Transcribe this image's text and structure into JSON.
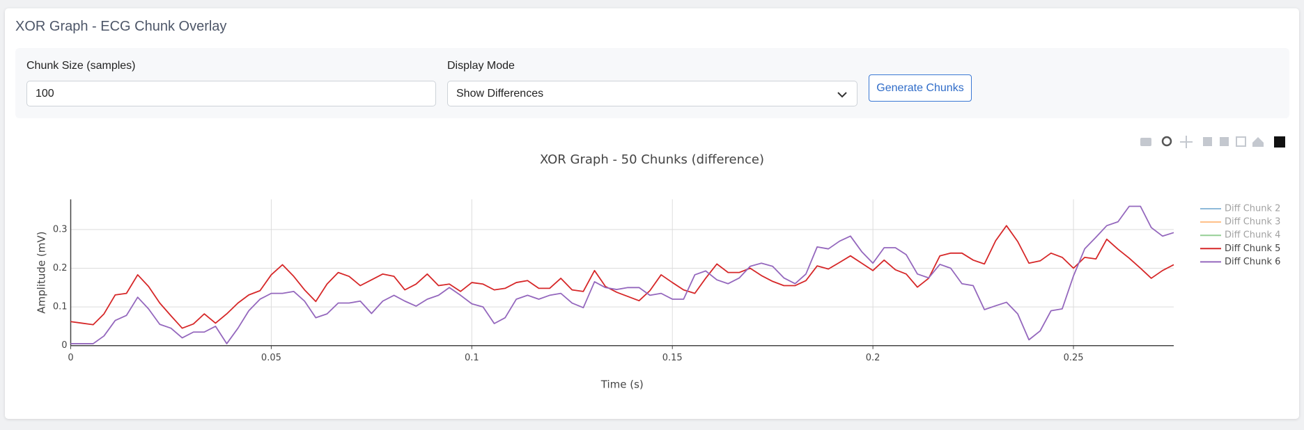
{
  "header": {
    "title": "XOR Graph - ECG Chunk Overlay"
  },
  "controls": {
    "chunk_size_label": "Chunk Size (samples)",
    "chunk_size_value": "100",
    "display_mode_label": "Display Mode",
    "display_mode_value": "Show Differences",
    "button": "Generate Chunks"
  },
  "chart_data": {
    "type": "line",
    "title": "XOR Graph - 50 Chunks (difference)",
    "x_label": "Time (s)",
    "y_label": "Amplitude (mV)",
    "x": [
      0,
      0.0028,
      0.0056,
      0.0083,
      0.0111,
      0.0139,
      0.0167,
      0.0194,
      0.0222,
      0.025,
      0.0278,
      0.0306,
      0.0333,
      0.0361,
      0.0389,
      0.0417,
      0.0444,
      0.0472,
      0.05,
      0.0528,
      0.0556,
      0.0583,
      0.0611,
      0.0639,
      0.0667,
      0.0694,
      0.0722,
      0.075,
      0.0778,
      0.0806,
      0.0833,
      0.0861,
      0.0889,
      0.0917,
      0.0944,
      0.0972,
      0.1,
      0.1028,
      0.1056,
      0.1083,
      0.1111,
      0.1139,
      0.1167,
      0.1194,
      0.1222,
      0.125,
      0.1278,
      0.1306,
      0.1333,
      0.1361,
      0.1389,
      0.1417,
      0.1444,
      0.1472,
      0.15,
      0.1528,
      0.1556,
      0.1583,
      0.1611,
      0.1639,
      0.1667,
      0.1694,
      0.1722,
      0.175,
      0.1778,
      0.1806,
      0.1833,
      0.1861,
      0.1889,
      0.1917,
      0.1944,
      0.1972,
      0.2,
      0.2028,
      0.2056,
      0.2083,
      0.2111,
      0.2139,
      0.2167,
      0.2194,
      0.2222,
      0.225,
      0.2278,
      0.2306,
      0.2333,
      0.2361,
      0.2389,
      0.2417,
      0.2444,
      0.2472,
      0.25,
      0.2528,
      0.2556,
      0.2583,
      0.2611,
      0.2639,
      0.2667,
      0.2694,
      0.2722,
      0.275
    ],
    "series": [
      {
        "name": "Diff Chunk 2",
        "color": "#1f77b4",
        "visible": false
      },
      {
        "name": "Diff Chunk 3",
        "color": "#ff7f0e",
        "visible": false
      },
      {
        "name": "Diff Chunk 4",
        "color": "#2ca02c",
        "visible": false
      },
      {
        "name": "Diff Chunk 5",
        "color": "#d62728",
        "visible": true,
        "values": [
          0.062,
          0.058,
          0.054,
          0.082,
          0.131,
          0.135,
          0.183,
          0.153,
          0.11,
          0.077,
          0.045,
          0.056,
          0.082,
          0.058,
          0.082,
          0.11,
          0.131,
          0.142,
          0.183,
          0.209,
          0.179,
          0.144,
          0.114,
          0.159,
          0.189,
          0.179,
          0.155,
          0.17,
          0.185,
          0.179,
          0.144,
          0.159,
          0.185,
          0.155,
          0.159,
          0.14,
          0.163,
          0.159,
          0.144,
          0.148,
          0.163,
          0.168,
          0.148,
          0.148,
          0.174,
          0.144,
          0.14,
          0.194,
          0.153,
          0.138,
          0.127,
          0.116,
          0.142,
          0.183,
          0.163,
          0.144,
          0.135,
          0.174,
          0.211,
          0.189,
          0.189,
          0.2,
          0.181,
          0.166,
          0.155,
          0.155,
          0.168,
          0.206,
          0.198,
          0.215,
          0.232,
          0.213,
          0.194,
          0.221,
          0.196,
          0.185,
          0.151,
          0.174,
          0.232,
          0.239,
          0.239,
          0.221,
          0.211,
          0.271,
          0.31,
          0.269,
          0.213,
          0.219,
          0.239,
          0.228,
          0.2,
          0.228,
          0.224,
          0.275,
          0.249,
          0.226,
          0.2,
          0.174,
          0.194,
          0.209
        ]
      },
      {
        "name": "Diff Chunk 6",
        "color": "#9467bd",
        "visible": true,
        "values": [
          0.005,
          0.005,
          0.005,
          0.025,
          0.065,
          0.078,
          0.125,
          0.095,
          0.055,
          0.045,
          0.02,
          0.035,
          0.035,
          0.05,
          0.005,
          0.045,
          0.09,
          0.12,
          0.135,
          0.135,
          0.14,
          0.115,
          0.072,
          0.082,
          0.11,
          0.11,
          0.115,
          0.083,
          0.115,
          0.13,
          0.115,
          0.102,
          0.12,
          0.13,
          0.15,
          0.13,
          0.108,
          0.1,
          0.057,
          0.072,
          0.12,
          0.13,
          0.12,
          0.13,
          0.135,
          0.11,
          0.098,
          0.165,
          0.15,
          0.145,
          0.15,
          0.15,
          0.13,
          0.135,
          0.12,
          0.12,
          0.183,
          0.193,
          0.17,
          0.16,
          0.175,
          0.205,
          0.213,
          0.205,
          0.175,
          0.16,
          0.185,
          0.255,
          0.25,
          0.27,
          0.283,
          0.243,
          0.213,
          0.253,
          0.253,
          0.235,
          0.185,
          0.175,
          0.21,
          0.2,
          0.16,
          0.155,
          0.093,
          0.103,
          0.112,
          0.082,
          0.015,
          0.038,
          0.09,
          0.095,
          0.18,
          0.25,
          0.28,
          0.31,
          0.32,
          0.36,
          0.36,
          0.305,
          0.283,
          0.292
        ]
      }
    ],
    "xlim": [
      0,
      0.275
    ],
    "ylim": [
      0,
      0.378
    ],
    "xticks": [
      0,
      0.05,
      0.1,
      0.15,
      0.2,
      0.25
    ],
    "yticks": [
      0,
      0.1,
      0.2,
      0.3
    ],
    "grid": true,
    "legend": "right"
  }
}
